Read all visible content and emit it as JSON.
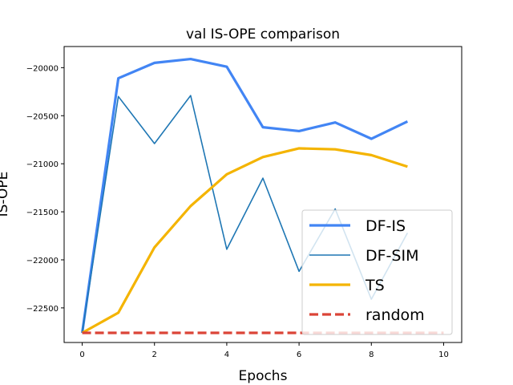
{
  "chart_data": {
    "type": "line",
    "title": "val IS-OPE comparison",
    "xlabel": "Epochs",
    "ylabel": "IS-OPE",
    "xlim": [
      -0.5,
      10.5
    ],
    "ylim": [
      -22860,
      -19780
    ],
    "xticks": [
      0,
      2,
      4,
      6,
      8,
      10
    ],
    "yticks": [
      -22500,
      -22000,
      -21500,
      -21000,
      -20500,
      -20000
    ],
    "legend_position": "lower right",
    "series": [
      {
        "name": "DF-IS",
        "color": "#4285f4",
        "style": "solid",
        "width": "thick",
        "x": [
          0,
          1,
          2,
          3,
          4,
          5,
          6,
          7,
          8,
          9
        ],
        "y": [
          -22760,
          -20110,
          -19950,
          -19910,
          -19990,
          -20620,
          -20660,
          -20570,
          -20740,
          -20560
        ]
      },
      {
        "name": "DF-SIM",
        "color": "#1f77b4",
        "style": "solid",
        "width": "thin",
        "x": [
          0,
          1,
          2,
          3,
          4,
          5,
          6,
          7,
          8,
          9
        ],
        "y": [
          -22760,
          -20300,
          -20790,
          -20290,
          -21890,
          -21150,
          -22120,
          -21470,
          -22410,
          -21720
        ]
      },
      {
        "name": "TS",
        "color": "#f4b400",
        "style": "solid",
        "width": "thick",
        "x": [
          0,
          1,
          2,
          3,
          4,
          5,
          6,
          7,
          8,
          9
        ],
        "y": [
          -22760,
          -22550,
          -21870,
          -21440,
          -21110,
          -20930,
          -20840,
          -20850,
          -20910,
          -21030
        ]
      },
      {
        "name": "random",
        "color": "#db4437",
        "style": "dashed",
        "width": "thick",
        "x": [
          0,
          10
        ],
        "y": [
          -22760,
          -22760
        ]
      }
    ]
  }
}
